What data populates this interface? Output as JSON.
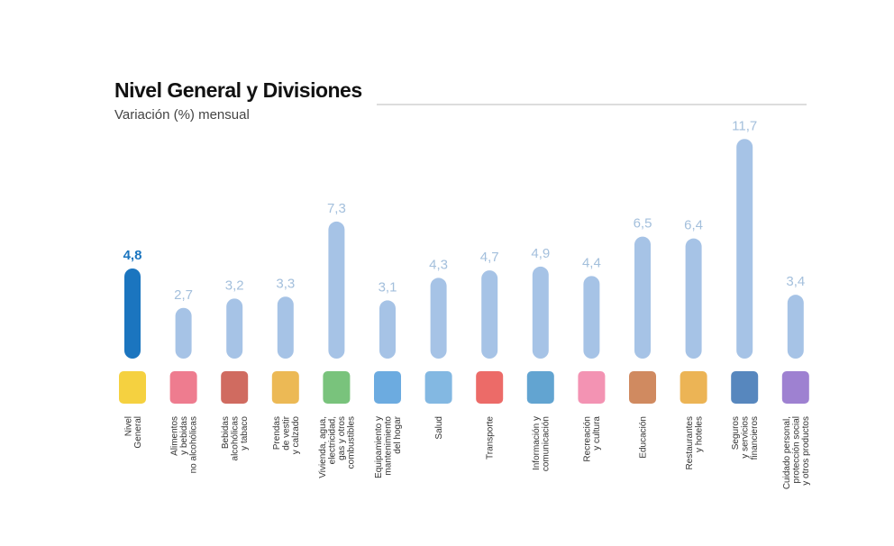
{
  "chart_data": {
    "type": "bar",
    "title": "Nivel General y Divisiones",
    "subtitle": "Variación (%) mensual",
    "categories": [
      [
        "Nivel",
        "General"
      ],
      [
        "Alimentos",
        "y bebidas",
        "no alcohólicas"
      ],
      [
        "Bebidas",
        "alcohólicas",
        "y tabaco"
      ],
      [
        "Prendas",
        "de vestir",
        "y calzado"
      ],
      [
        "Vivienda, agua,",
        "electricidad,",
        "gas y otros",
        "combustibles"
      ],
      [
        "Equipamiento y",
        "mantenimiento",
        "del hogar"
      ],
      [
        "Salud"
      ],
      [
        "Transporte"
      ],
      [
        "Información y",
        "comunicación"
      ],
      [
        "Recreación",
        "y cultura"
      ],
      [
        "Educación"
      ],
      [
        "Restaurantes",
        "y hoteles"
      ],
      [
        "Seguros",
        "y servicios",
        "financieros"
      ],
      [
        "Cuidado personal,",
        "protección social",
        "y otros productos"
      ]
    ],
    "values": [
      4.8,
      2.7,
      3.2,
      3.3,
      7.3,
      3.1,
      4.3,
      4.7,
      4.9,
      4.4,
      6.5,
      6.4,
      11.7,
      3.4
    ],
    "value_labels": [
      "4,8",
      "2,7",
      "3,2",
      "3,3",
      "7,3",
      "3,1",
      "4,3",
      "4,7",
      "4,9",
      "4,4",
      "6,5",
      "6,4",
      "11,7",
      "3,4"
    ],
    "colors": [
      "#1b75bf",
      "#a6c3e6",
      "#a6c3e6",
      "#a6c3e6",
      "#a6c3e6",
      "#a6c3e6",
      "#a6c3e6",
      "#a6c3e6",
      "#a6c3e6",
      "#a6c3e6",
      "#a6c3e6",
      "#a6c3e6",
      "#a6c3e6",
      "#a6c3e6"
    ],
    "label_colors": [
      "#1b75bf",
      "#a3bfdc",
      "#a3bfdc",
      "#a3bfdc",
      "#a3bfdc",
      "#a3bfdc",
      "#a3bfdc",
      "#a3bfdc",
      "#a3bfdc",
      "#a3bfdc",
      "#a3bfdc",
      "#a3bfdc",
      "#a3bfdc",
      "#a3bfdc"
    ],
    "ylim": [
      0,
      12
    ]
  }
}
